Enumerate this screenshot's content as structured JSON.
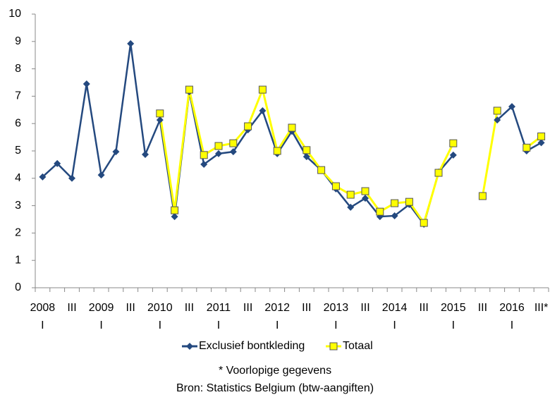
{
  "chart_data": {
    "type": "line",
    "years": [
      "2008",
      "2009",
      "2010",
      "2011",
      "2012",
      "2013",
      "2014",
      "2015",
      "2016"
    ],
    "categories": [
      "I",
      null,
      "III",
      null,
      "I",
      null,
      "III",
      null,
      "I",
      null,
      "III",
      null,
      "I",
      null,
      "III",
      null,
      "I",
      null,
      "III",
      null,
      "I",
      null,
      "III",
      null,
      "I",
      null,
      "III",
      null,
      "I",
      null,
      "III",
      null,
      "I",
      null,
      "III*"
    ],
    "series": [
      {
        "name": "Exclusief bontkleding",
        "color": "#24497f",
        "marker": "diamond",
        "values": [
          4.05,
          4.54,
          4.0,
          7.45,
          4.12,
          4.97,
          8.92,
          4.87,
          6.13,
          2.6,
          7.16,
          4.51,
          4.9,
          4.97,
          5.77,
          6.47,
          4.9,
          5.72,
          4.79,
          4.3,
          3.61,
          2.94,
          3.27,
          2.6,
          2.63,
          3.04,
          2.32,
          4.23,
          4.85,
          null,
          null,
          6.13,
          6.62,
          5.0,
          5.3
        ]
      },
      {
        "name": "Totaal",
        "color": "#ffff00",
        "marker": "square",
        "values": [
          null,
          null,
          null,
          null,
          null,
          null,
          null,
          null,
          6.37,
          2.83,
          7.24,
          4.85,
          5.18,
          5.28,
          5.9,
          7.24,
          5.0,
          5.85,
          5.03,
          4.3,
          3.71,
          3.4,
          3.53,
          2.78,
          3.09,
          3.14,
          2.37,
          4.2,
          5.28,
          null,
          3.35,
          6.47,
          null,
          5.12,
          5.53
        ]
      }
    ],
    "ylim": [
      0,
      10
    ],
    "yticks": [
      0,
      1,
      2,
      3,
      4,
      5,
      6,
      7,
      8,
      9,
      10
    ],
    "legend": "bottom",
    "notes": [
      "* Voorlopige gegevens",
      "Bron: Statistics Belgium (btw-aangiften)"
    ]
  }
}
